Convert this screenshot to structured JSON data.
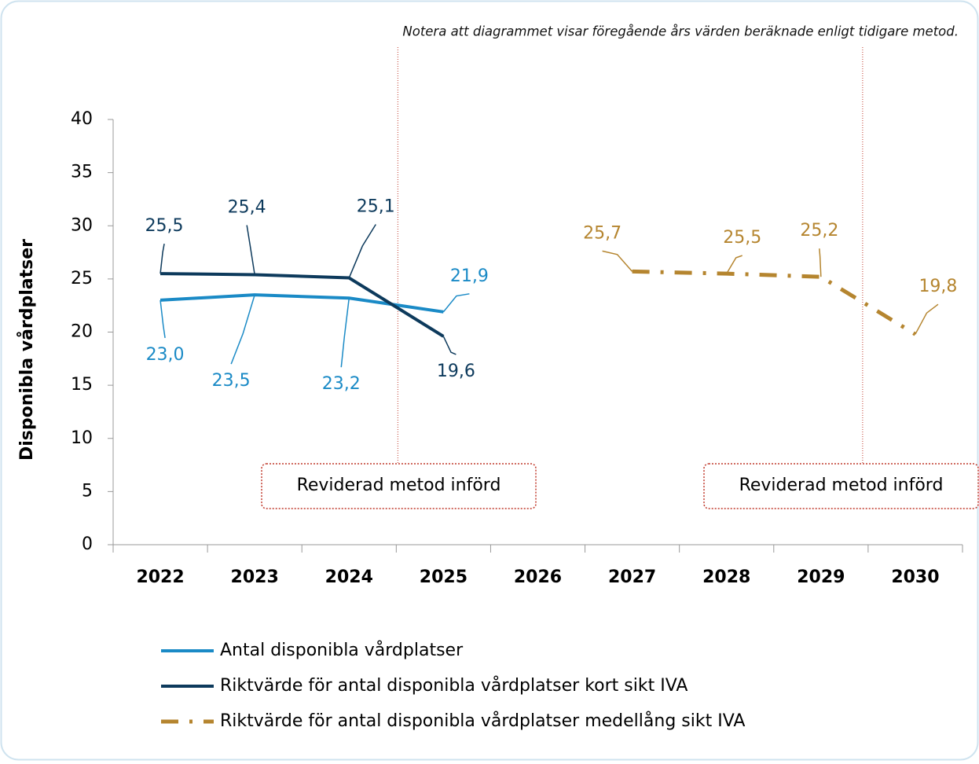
{
  "chart_data": {
    "type": "line",
    "note": "Notera att diagrammet visar föregående års värden beräknade enligt tidigare metod.",
    "y_label": "Disponibla vårdplatser",
    "categories": [
      "2022",
      "2023",
      "2024",
      "2025",
      "2026",
      "2027",
      "2028",
      "2029",
      "2030"
    ],
    "series": [
      {
        "name": "Antal disponibla vårdplatser",
        "color": "#1a8ac6",
        "style": "solid",
        "values": [
          23.0,
          23.5,
          23.2,
          21.9,
          null,
          null,
          null,
          null,
          null
        ],
        "value_labels": [
          "23,0",
          "23,5",
          "23,2",
          "21,9",
          null,
          null,
          null,
          null,
          null
        ]
      },
      {
        "name": "Riktvärde för antal disponibla vårdplatser kort sikt IVA",
        "color": "#0d3a5c",
        "style": "solid",
        "values": [
          25.5,
          25.4,
          25.1,
          19.6,
          null,
          null,
          null,
          null,
          null
        ],
        "value_labels": [
          "25,5",
          "25,4",
          "25,1",
          "19,6",
          null,
          null,
          null,
          null,
          null
        ]
      },
      {
        "name": "Riktvärde för antal disponibla vårdplatser medellång sikt IVA",
        "color": "#b5852f",
        "style": "dashdot",
        "values": [
          null,
          null,
          null,
          null,
          null,
          25.7,
          25.5,
          25.2,
          19.8
        ],
        "value_labels": [
          null,
          null,
          null,
          null,
          null,
          "25,7",
          "25,5",
          "25,2",
          "19,8"
        ]
      }
    ],
    "annotations": [
      "Reviderad metod införd",
      "Reviderad metod införd"
    ],
    "ylim": [
      0,
      40
    ],
    "yticks": [
      0,
      5,
      10,
      15,
      20,
      25,
      30,
      35,
      40
    ]
  }
}
